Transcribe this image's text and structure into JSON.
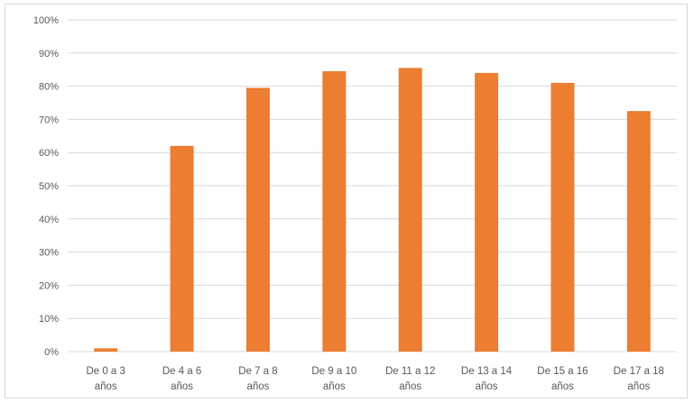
{
  "chart_data": {
    "type": "bar",
    "title": "",
    "xlabel": "",
    "ylabel": "",
    "categories": [
      [
        "De 0 a 3",
        "años"
      ],
      [
        "De 4 a 6",
        "años"
      ],
      [
        "De 7 a 8",
        "años"
      ],
      [
        "De 9 a 10",
        "años"
      ],
      [
        "De 11 a 12",
        "años"
      ],
      [
        "De 13 a 14",
        "años"
      ],
      [
        "De 15 a 16",
        "años"
      ],
      [
        "De 17 a 18",
        "años"
      ]
    ],
    "values": [
      1,
      62,
      79.5,
      84.5,
      85.5,
      84,
      81,
      72.5
    ],
    "ylim": [
      0,
      100
    ],
    "yticks": [
      "0%",
      "10%",
      "20%",
      "30%",
      "40%",
      "50%",
      "60%",
      "70%",
      "80%",
      "90%",
      "100%"
    ],
    "grid": true,
    "legend": "none",
    "colors": {
      "bar": "#ED7D31",
      "grid": "#d9d9d9",
      "text": "#595959"
    }
  }
}
